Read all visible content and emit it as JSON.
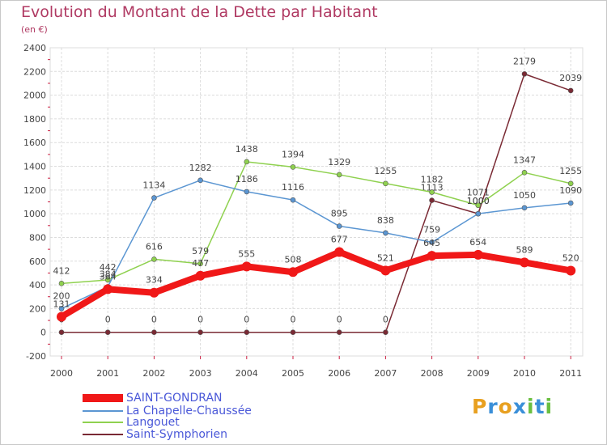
{
  "title": "Evolution du Montant de la Dette par Habitant",
  "subtitle": "(en €)",
  "brand": {
    "letters": [
      "P",
      "r",
      "o",
      "x",
      "i",
      "t",
      "i"
    ],
    "colors": [
      "#e8a020",
      "#3a8fd8",
      "#e8a020",
      "#3a8fd8",
      "#6abf40",
      "#3a8fd8",
      "#6abf40"
    ]
  },
  "chart_data": {
    "type": "line",
    "title": "Evolution du Montant de la Dette par Habitant",
    "ylabel": "(en €)",
    "xlabel": "",
    "ylim": [
      -200,
      2400
    ],
    "yticks": [
      "-200",
      "0",
      "200",
      "400",
      "600",
      "800",
      "1000",
      "1200",
      "1400",
      "1600",
      "1800",
      "2000",
      "2200",
      "2400"
    ],
    "ytick_values": [
      -200,
      0,
      200,
      400,
      600,
      800,
      1000,
      1200,
      1400,
      1600,
      1800,
      2000,
      2200,
      2400
    ],
    "categories": [
      "2000",
      "2001",
      "2002",
      "2003",
      "2004",
      "2005",
      "2006",
      "2007",
      "2008",
      "2009",
      "2010",
      "2011"
    ],
    "grid": true,
    "legend": "bottom-left",
    "series": [
      {
        "name": "Saint-Symphorien",
        "color": "#7a2a34",
        "values": [
          0,
          0,
          0,
          0,
          0,
          0,
          0,
          0,
          1113,
          1000,
          2179,
          2039
        ],
        "labels": [
          "0",
          "0",
          "0",
          "0",
          "0",
          "0",
          "0",
          "0",
          "1113",
          "1000",
          "2179",
          "2039"
        ]
      },
      {
        "name": "Langouet",
        "color": "#8fd14f",
        "values": [
          412,
          442,
          616,
          579,
          1438,
          1394,
          1329,
          1255,
          1182,
          1071,
          1347,
          1255
        ],
        "labels": [
          "412",
          "442",
          "616",
          "579",
          "1438",
          "1394",
          "1329",
          "1255",
          "1182",
          "1071",
          "1347",
          "1255"
        ]
      },
      {
        "name": "La Chapelle-Chaussée",
        "color": "#5b96d2",
        "values": [
          200,
          384,
          1134,
          1282,
          1186,
          1116,
          895,
          838,
          759,
          1000,
          1050,
          1090
        ],
        "labels": [
          "200",
          "384",
          "1134",
          "1282",
          "1186",
          "1116",
          "895",
          "838",
          "759",
          "1000",
          "1050",
          "1090"
        ]
      },
      {
        "name": "SAINT-GONDRAN",
        "color": "#f01818",
        "values": [
          131,
          364,
          334,
          477,
          555,
          508,
          677,
          521,
          645,
          654,
          589,
          520
        ],
        "labels": [
          "131",
          "364",
          "334",
          "477",
          "555",
          "508",
          "677",
          "521",
          "645",
          "654",
          "589",
          "520"
        ]
      }
    ]
  },
  "legend_items": [
    {
      "name": "SAINT-GONDRAN",
      "color": "#f01818"
    },
    {
      "name": "La Chapelle-Chaussée",
      "color": "#5b96d2"
    },
    {
      "name": "Langouet",
      "color": "#8fd14f"
    },
    {
      "name": "Saint-Symphorien",
      "color": "#7a2a34"
    }
  ]
}
